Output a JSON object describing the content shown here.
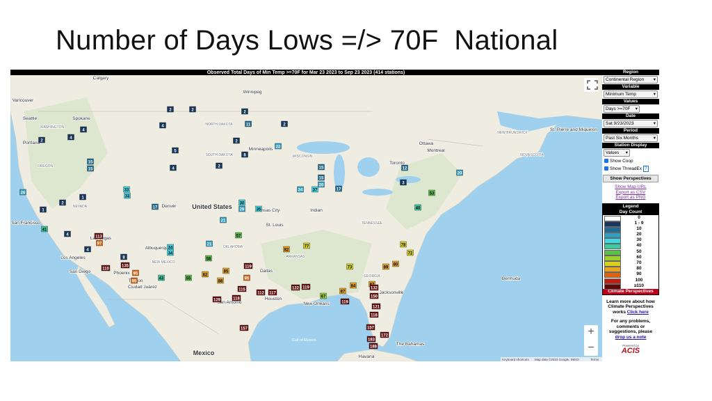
{
  "slide": {
    "title": "Number of Days Lows =/> 70F  National"
  },
  "map": {
    "header": "Observed Total Days of Min Temp >=70F for Mar 23 2023 to Sep 23 2023 (414 stations)",
    "place_labels": [
      "Calgary",
      "Winnipeg",
      "Vancouver",
      "Seattle",
      "Spokane",
      "WASHINGTON",
      "Portland",
      "OREGON",
      "NORTH DAKOTA",
      "SOUTH DAKOTA",
      "Minneapolis",
      "WISCONSIN",
      "Ottawa",
      "Toronto",
      "Montreal",
      "NEVADA",
      "San Francisco",
      "Denver",
      "United States",
      "Kansas City",
      "St. Louis",
      "Indian",
      "Las Vegas",
      "Los Angeles",
      "San Diego",
      "Albuquerque",
      "NEW MEXICO",
      "OKLAHOMA",
      "ARKANSAS",
      "Dallas",
      "Phoenix",
      "Tucson",
      "Ciudad Juárez",
      "San Antonio",
      "Houston",
      "New Orleans",
      "Gulf of Mexico",
      "Mexico",
      "Havana",
      "The Bahamas",
      "Bermuda",
      "St. Pierre and Miquelon",
      "NEW BRUNSWICK",
      "NOVA SCOTIA",
      "TENNESSEE",
      "GEORGIA",
      "Jacksonville"
    ],
    "stations": [
      2,
      2,
      2,
      11,
      2,
      4,
      4,
      2,
      4,
      2,
      22,
      5,
      8,
      15,
      15,
      4,
      2,
      15,
      26,
      33,
      33,
      2,
      1,
      1,
      17,
      30,
      29,
      21,
      35,
      57,
      41,
      4,
      113,
      97,
      4,
      8,
      34,
      34,
      21,
      58,
      82,
      110,
      135,
      95,
      95,
      43,
      55,
      82,
      85,
      119,
      95,
      88,
      115,
      129,
      118,
      112,
      117,
      157,
      122,
      119,
      67,
      119,
      84,
      87,
      132,
      150,
      121,
      118,
      157,
      172,
      183,
      188,
      77,
      87,
      73,
      89,
      80,
      78,
      72,
      53,
      40,
      20,
      12,
      3,
      15,
      20,
      24,
      37,
      17
    ],
    "zoom_in": "+",
    "zoom_out": "−",
    "attribution": [
      "Keyboard shortcuts",
      "Map data ©2023 Google, INEGI",
      "Terms"
    ]
  },
  "panel": {
    "region_header": "Region",
    "region": "Continental Region",
    "variable_header": "Variable",
    "variable": "Minimum Temp",
    "values_header": "Values",
    "values": "Days >=70F",
    "date_header": "Date",
    "date": "Sat 9/23/2023",
    "period_header": "Period",
    "period": "Past Six Months",
    "display_header": "Station Display",
    "display": "Values",
    "show_coop": "Show Coop",
    "show_threadex": "Show ThreadEx",
    "help": "?",
    "show_perspectives": "Show Perspectives",
    "links": [
      "Show Map URL",
      "Export as CSV",
      "Export as PNG"
    ],
    "legend_title": "Legend",
    "legend_subtitle": "Day Count",
    "legend": [
      {
        "label": "0",
        "color": "#ffffff"
      },
      {
        "label": "1 - 9",
        "color": "#17375e"
      },
      {
        "label": "10",
        "color": "#1f6b95"
      },
      {
        "label": "20",
        "color": "#2f9fc6"
      },
      {
        "label": "30",
        "color": "#40d8e6"
      },
      {
        "label": "40",
        "color": "#3ccaa2"
      },
      {
        "label": "50",
        "color": "#5cbf4a"
      },
      {
        "label": "60",
        "color": "#9ccf2c"
      },
      {
        "label": "70",
        "color": "#d8d21c"
      },
      {
        "label": "80",
        "color": "#e8a41e"
      },
      {
        "label": "90",
        "color": "#da6412"
      },
      {
        "label": "100",
        "color": "#c11e12"
      },
      {
        "label": "≥110",
        "color": "#5e0808"
      }
    ],
    "perspectives_bar": "Climate Perspectives",
    "learn_more": "Learn more about how Climate Perspectives works",
    "click_here": "Click here",
    "problems": "For any problems, comments or suggestions, please",
    "drop_note": "drop us a note",
    "powered_by": "Powered by",
    "acis": "ACIS"
  }
}
